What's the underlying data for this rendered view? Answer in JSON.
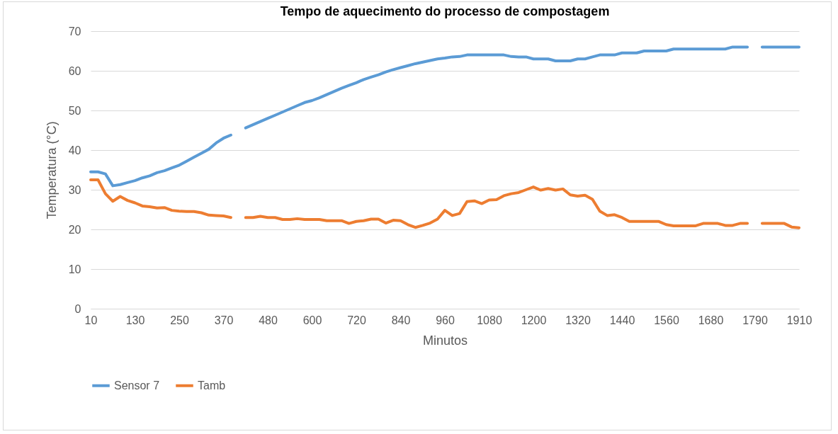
{
  "chart_data": {
    "type": "line",
    "title": "Tempo de aquecimento do processo de compostagem",
    "xlabel": "Minutos",
    "ylabel": "Temperatura (°C)",
    "categories": [
      "10",
      null,
      null,
      null,
      null,
      null,
      "130",
      null,
      null,
      null,
      null,
      null,
      "250",
      null,
      null,
      null,
      null,
      null,
      "370",
      null,
      null,
      null,
      null,
      null,
      "480",
      null,
      null,
      null,
      null,
      null,
      "600",
      null,
      null,
      null,
      null,
      null,
      "720",
      null,
      null,
      null,
      null,
      null,
      "840",
      null,
      null,
      null,
      null,
      null,
      "960",
      null,
      null,
      null,
      null,
      null,
      "1080",
      null,
      null,
      null,
      null,
      null,
      "1200",
      null,
      null,
      null,
      null,
      null,
      "1320",
      null,
      null,
      null,
      null,
      null,
      "1440",
      null,
      null,
      null,
      null,
      null,
      "1560",
      null,
      null,
      null,
      null,
      null,
      "1680",
      null,
      null,
      null,
      null,
      null,
      "1790",
      null,
      null,
      null,
      null,
      null,
      "1910"
    ],
    "series": [
      {
        "name": "Sensor 7",
        "color": "#5b9bd5",
        "values": [
          34.5,
          34.5,
          34.0,
          31.0,
          31.3,
          31.8,
          32.3,
          33.0,
          33.5,
          34.3,
          34.8,
          35.5,
          36.2,
          37.2,
          38.2,
          39.2,
          40.2,
          41.8,
          43.0,
          43.8,
          null,
          45.6,
          46.4,
          47.2,
          48.0,
          48.8,
          49.6,
          50.4,
          51.2,
          52.0,
          52.5,
          53.2,
          54.0,
          54.8,
          55.6,
          56.3,
          57.0,
          57.8,
          58.4,
          59.0,
          59.7,
          60.3,
          60.8,
          61.3,
          61.8,
          62.2,
          62.6,
          63.0,
          63.2,
          63.5,
          63.6,
          64.0,
          64.0,
          64.0,
          64.0,
          64.0,
          64.0,
          63.6,
          63.5,
          63.5,
          63.0,
          63.0,
          63.0,
          62.5,
          62.5,
          62.5,
          63.0,
          63.0,
          63.5,
          64.0,
          64.0,
          64.0,
          64.5,
          64.5,
          64.5,
          65.0,
          65.0,
          65.0,
          65.0,
          65.5,
          65.5,
          65.5,
          65.5,
          65.5,
          65.5,
          65.5,
          65.5,
          66.0,
          66.0,
          66.0,
          null,
          66.0,
          66.0,
          66.0,
          66.0,
          66.0,
          66.0
        ]
      },
      {
        "name": "Tamb",
        "color": "#ed7d31",
        "values": [
          32.5,
          32.5,
          29.0,
          27.1,
          28.3,
          27.3,
          26.7,
          25.9,
          25.7,
          25.4,
          25.5,
          24.8,
          24.6,
          24.5,
          24.5,
          24.2,
          23.6,
          23.5,
          23.4,
          23.0,
          null,
          23.0,
          23.0,
          23.3,
          23.0,
          23.0,
          22.5,
          22.5,
          22.7,
          22.5,
          22.5,
          22.5,
          22.2,
          22.2,
          22.2,
          21.5,
          22.0,
          22.2,
          22.6,
          22.6,
          21.6,
          22.3,
          22.2,
          21.2,
          20.5,
          21.0,
          21.6,
          22.6,
          24.8,
          23.5,
          24.0,
          27.0,
          27.2,
          26.5,
          27.4,
          27.5,
          28.5,
          29.0,
          29.3,
          30.0,
          30.7,
          29.9,
          30.3,
          29.9,
          30.2,
          28.7,
          28.4,
          28.6,
          27.6,
          24.6,
          23.5,
          23.7,
          23.0,
          22.0,
          22.0,
          22.0,
          22.0,
          22.0,
          21.2,
          20.9,
          20.9,
          20.9,
          20.9,
          21.5,
          21.5,
          21.5,
          21.0,
          21.0,
          21.5,
          21.5,
          null,
          21.5,
          21.5,
          21.5,
          21.5,
          20.6,
          20.4
        ]
      }
    ],
    "ylim": [
      0,
      70
    ],
    "yticks": [
      0,
      10,
      20,
      30,
      40,
      50,
      60,
      70
    ],
    "grid": "y",
    "legend": "bottom"
  }
}
